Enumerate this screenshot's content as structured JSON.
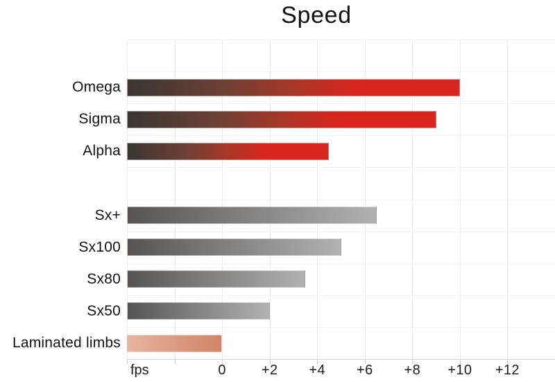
{
  "chart_data": {
    "type": "bar",
    "orientation": "horizontal",
    "title": "Speed",
    "xlabel_unit": "fps",
    "xlim": [
      -4,
      14
    ],
    "bar_base": -4,
    "grid": true,
    "legend": "none",
    "x_tick_values": [
      0,
      2,
      4,
      6,
      8,
      10,
      12
    ],
    "x_tick_labels": [
      "0",
      "+2",
      "+4",
      "+6",
      "+8",
      "+10",
      "+12"
    ],
    "categories": [
      "Omega",
      "Sigma",
      "Alpha",
      "Sx+",
      "Sx100",
      "Sx80",
      "Sx50",
      "Laminated limbs"
    ],
    "values": [
      10,
      9,
      4.5,
      6.5,
      5,
      3.5,
      2,
      0
    ],
    "rows": [
      {
        "label": "",
        "value": null,
        "style": ""
      },
      {
        "label": "Omega",
        "value": 10,
        "style": "red"
      },
      {
        "label": "Sigma",
        "value": 9,
        "style": "red"
      },
      {
        "label": "Alpha",
        "value": 4.5,
        "style": "red"
      },
      {
        "label": "",
        "value": null,
        "style": ""
      },
      {
        "label": "Sx+",
        "value": 6.5,
        "style": "gray"
      },
      {
        "label": "Sx100",
        "value": 5,
        "style": "gray"
      },
      {
        "label": "Sx80",
        "value": 3.5,
        "style": "gray"
      },
      {
        "label": "Sx50",
        "value": 2,
        "style": "gray"
      },
      {
        "label": "Laminated limbs",
        "value": 0,
        "style": "salmon"
      }
    ],
    "bar_styles": {
      "red": {
        "gradient_stops": [
          "#3a3632 0%",
          "#6f4034 30%",
          "#a83727 50%",
          "#d8251d 68%",
          "#d8251d 100%"
        ]
      },
      "gray": {
        "gradient_stops": [
          "#575350 0%",
          "#868381 50%",
          "#b2b2b0 100%"
        ]
      },
      "salmon": {
        "gradient_stops": [
          "#e8b49e 0%",
          "#d08466 100%"
        ]
      }
    },
    "accent_color": "#d8251d"
  }
}
